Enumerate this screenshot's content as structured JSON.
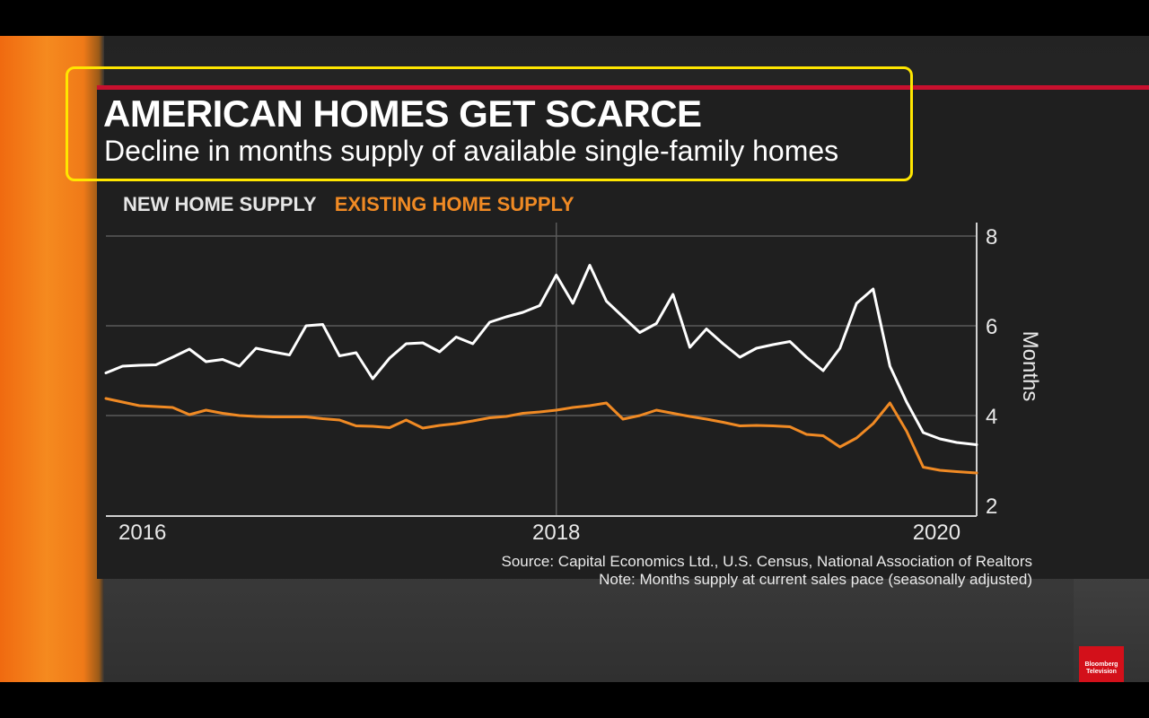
{
  "header": {
    "title": "AMERICAN HOMES GET SCARCE",
    "subtitle": "Decline in months supply of available single-family homes"
  },
  "legend": {
    "new": "NEW HOME SUPPLY",
    "existing": "EXISTING HOME SUPPLY"
  },
  "colors": {
    "new": "#ffffff",
    "existing": "#f08a24",
    "accent": "#c8102e",
    "highlight": "#ffe600"
  },
  "footer": {
    "source": "Source: Capital Economics Ltd., U.S. Census, National Association of Realtors",
    "note": "Note: Months supply at current sales pace (seasonally adjusted)"
  },
  "logo": {
    "line1": "Bloomberg",
    "line2": "Television"
  },
  "chart_data": {
    "type": "line",
    "title": "AMERICAN HOMES GET SCARCE",
    "subtitle": "Decline in months supply of available single-family homes",
    "ylabel": "Months",
    "ylim": [
      2,
      8.3
    ],
    "yticks": [
      2,
      4,
      6,
      8
    ],
    "xlim": [
      2015.75,
      2020.1
    ],
    "xticks": [
      {
        "value": 2016,
        "label": "2016"
      },
      {
        "value": 2018,
        "label": "2018"
      },
      {
        "value": 2020,
        "label": "2020"
      }
    ],
    "grid": true,
    "series": [
      {
        "name": "NEW HOME SUPPLY",
        "color": "#ffffff",
        "x": [
          2015.75,
          2015.833,
          2015.917,
          2016.0,
          2016.083,
          2016.167,
          2016.25,
          2016.333,
          2016.417,
          2016.5,
          2016.583,
          2016.667,
          2016.75,
          2016.833,
          2016.917,
          2017.0,
          2017.083,
          2017.167,
          2017.25,
          2017.333,
          2017.417,
          2017.5,
          2017.583,
          2017.667,
          2017.75,
          2017.833,
          2017.917,
          2018.0,
          2018.083,
          2018.167,
          2018.25,
          2018.333,
          2018.417,
          2018.5,
          2018.583,
          2018.667,
          2018.75,
          2018.833,
          2018.917,
          2019.0,
          2019.083,
          2019.167,
          2019.25,
          2019.333,
          2019.417,
          2019.5,
          2019.583,
          2019.667,
          2019.75,
          2019.833,
          2019.917,
          2020.0,
          2020.1
        ],
        "values": [
          4.95,
          5.1,
          5.12,
          5.13,
          5.3,
          5.48,
          5.2,
          5.25,
          5.1,
          5.5,
          5.42,
          5.35,
          6.0,
          6.03,
          5.33,
          5.4,
          4.82,
          5.28,
          5.6,
          5.62,
          5.42,
          5.75,
          5.6,
          6.08,
          6.2,
          6.3,
          6.45,
          7.13,
          6.5,
          7.35,
          6.55,
          6.2,
          5.85,
          6.05,
          6.7,
          5.52,
          5.93,
          5.6,
          5.3,
          5.5,
          5.58,
          5.65,
          5.3,
          5.0,
          5.5,
          6.5,
          6.82,
          5.1,
          4.3,
          3.62,
          3.48,
          3.4,
          3.35
        ]
      },
      {
        "name": "EXISTING HOME SUPPLY",
        "color": "#f08a24",
        "x": [
          2015.75,
          2015.833,
          2015.917,
          2016.0,
          2016.083,
          2016.167,
          2016.25,
          2016.333,
          2016.417,
          2016.5,
          2016.583,
          2016.667,
          2016.75,
          2016.833,
          2016.917,
          2017.0,
          2017.083,
          2017.167,
          2017.25,
          2017.333,
          2017.417,
          2017.5,
          2017.583,
          2017.667,
          2017.75,
          2017.833,
          2017.917,
          2018.0,
          2018.083,
          2018.167,
          2018.25,
          2018.333,
          2018.417,
          2018.5,
          2018.583,
          2018.667,
          2018.75,
          2018.833,
          2018.917,
          2019.0,
          2019.083,
          2019.167,
          2019.25,
          2019.333,
          2019.417,
          2019.5,
          2019.583,
          2019.667,
          2019.75,
          2019.833,
          2019.917,
          2020.0,
          2020.1
        ],
        "values": [
          4.38,
          4.3,
          4.22,
          4.2,
          4.18,
          4.02,
          4.12,
          4.05,
          4.0,
          3.98,
          3.97,
          3.97,
          3.97,
          3.93,
          3.9,
          3.77,
          3.76,
          3.73,
          3.9,
          3.72,
          3.78,
          3.82,
          3.88,
          3.95,
          3.98,
          4.05,
          4.08,
          4.12,
          4.18,
          4.22,
          4.28,
          3.92,
          4.0,
          4.12,
          4.05,
          3.98,
          3.92,
          3.85,
          3.77,
          3.78,
          3.77,
          3.75,
          3.58,
          3.55,
          3.3,
          3.5,
          3.82,
          4.28,
          3.65,
          2.85,
          2.78,
          2.75,
          2.72
        ]
      }
    ]
  }
}
